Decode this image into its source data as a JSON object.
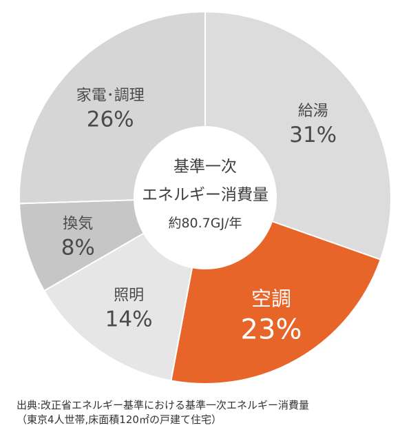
{
  "chart_data": {
    "type": "pie",
    "style": "donut",
    "center_label": {
      "line1": "基準一次",
      "line2": "エネルギー消費量",
      "line3": "約80.7GJ/年"
    },
    "segments": [
      {
        "name": "給湯",
        "value": 31,
        "label": "31%",
        "color": "#dcdcdc"
      },
      {
        "name": "空調",
        "value": 23,
        "label": "23%",
        "color": "#e8652a",
        "highlight": true
      },
      {
        "name": "照明",
        "value": 14,
        "label": "14%",
        "color": "#e6e6e6"
      },
      {
        "name": "換気",
        "value": 8,
        "label": "8%",
        "color": "#c6c6c6"
      },
      {
        "name": "家電･調理",
        "value": 26,
        "label": "26%",
        "color": "#d6d6d6"
      }
    ],
    "colors": {
      "background": "#ffffff",
      "separator": "#ffffff",
      "text": "#4a4a4a",
      "highlight_text": "#ffffff"
    }
  },
  "caption": {
    "line1": "出典:改正省エネルギー基準における基準一次エネルギー消費量",
    "line2": "（東京4人世帯,床面積120㎡の戸建て住宅）"
  }
}
